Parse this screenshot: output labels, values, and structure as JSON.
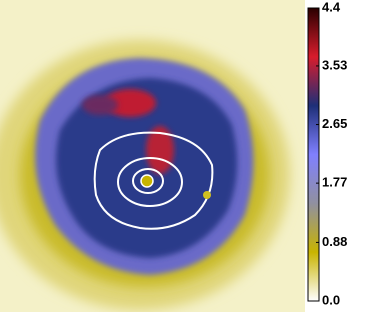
{
  "chart_data": {
    "type": "image",
    "colorbar": {
      "clim": [
        0,
        4.4
      ],
      "ticks": [
        {
          "value": 0,
          "label": "0.0"
        },
        0.88,
        1.77,
        2.65,
        3.53,
        4.4
      ],
      "colors": [
        "#ffffff",
        "#c8b400",
        "#9090a0",
        "#8080ff",
        "#1e2f78",
        "#d81c2c",
        "#2a0000"
      ]
    }
  }
}
